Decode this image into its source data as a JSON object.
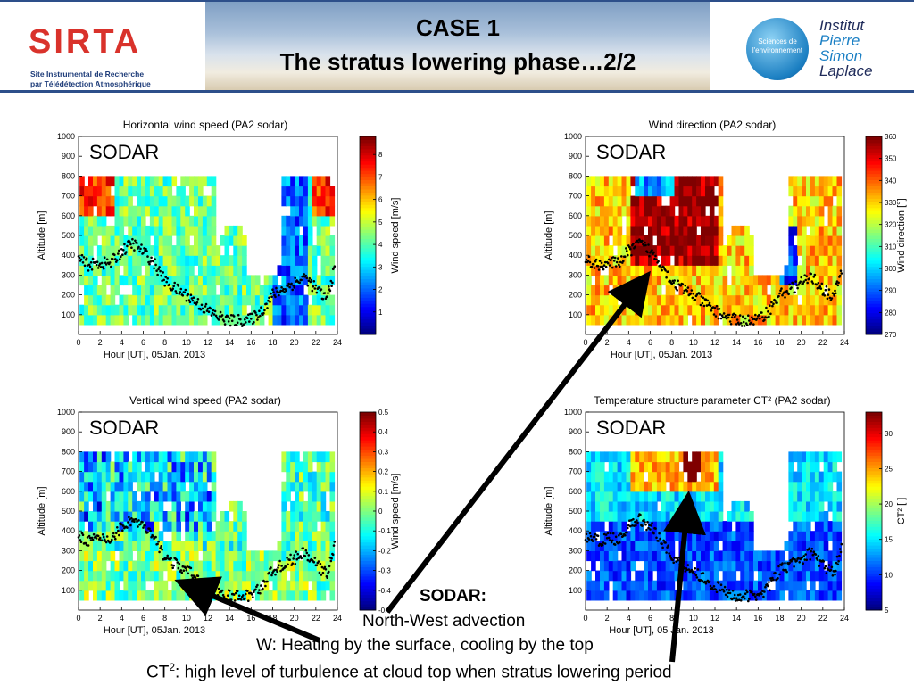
{
  "header": {
    "logo_left": {
      "word": "SIRTA",
      "line1": "Site Instrumental de Recherche",
      "line2": "par Télédétection Atmosphérique"
    },
    "title_line1": "CASE 1",
    "title_line2": "The stratus lowering phase…2/2",
    "logo_right": {
      "circle_line1": "Sciences de",
      "circle_line2": "l'environnement",
      "name1": "Institut",
      "name2": "Pierre",
      "name3": "Simon",
      "name4": "Laplace"
    }
  },
  "panels": [
    {
      "id": "hws",
      "title": "Horizontal wind speed (PA2 sodar)",
      "xlabel": "Hour [UT], 05Jan. 2013",
      "ylabel": "Altitude [m]",
      "tag": "SODAR",
      "cbar_label": "Wind speed [m/s]",
      "cbar_ticks": [
        "1",
        "2",
        "3",
        "4",
        "5",
        "6",
        "7",
        "8"
      ]
    },
    {
      "id": "wd",
      "title": "Wind direction (PA2 sodar)",
      "xlabel": "Hour [UT], 05Jan. 2013",
      "ylabel": "Altitude [m]",
      "tag": "SODAR",
      "cbar_label": "Wind direction [°]",
      "cbar_ticks": [
        "270",
        "280",
        "290",
        "300",
        "310",
        "320",
        "330",
        "340",
        "350",
        "360"
      ]
    },
    {
      "id": "vws",
      "title": "Vertical wind speed (PA2 sodar)",
      "xlabel": "Hour [UT], 05Jan. 2013",
      "ylabel": "Altitude [m]",
      "tag": "SODAR",
      "cbar_label": "Wind speed [m/s]",
      "cbar_ticks": [
        "-0.5",
        "-0.4",
        "-0.3",
        "-0.2",
        "-0.1",
        "0",
        "0.1",
        "0.2",
        "0.3",
        "0.4",
        "0.5"
      ]
    },
    {
      "id": "ct2",
      "title": "Temperature structure parameter CT² (PA2 sodar)",
      "xlabel": "Hour [UT], 05 Jan. 2013",
      "ylabel": "Altitude [m]",
      "tag": "SODAR",
      "cbar_label": "CT² [ ]",
      "cbar_ticks": [
        "5",
        "10",
        "15",
        "20",
        "25",
        "30"
      ]
    }
  ],
  "chart_data": [
    {
      "type": "heatmap",
      "title": "Horizontal wind speed (PA2 sodar)",
      "xlabel": "Hour [UT], 05Jan. 2013",
      "ylabel": "Altitude [m]",
      "x_ticks": [
        0,
        2,
        4,
        6,
        8,
        10,
        12,
        14,
        16,
        18,
        20,
        22,
        24
      ],
      "y_ticks": [
        100,
        200,
        300,
        400,
        500,
        600,
        700,
        800,
        900,
        1000
      ],
      "xlim": [
        0,
        24
      ],
      "ylim": [
        0,
        1000
      ],
      "colorbar": {
        "label": "Wind speed [m/s]",
        "range": [
          0,
          8.8
        ]
      }
    },
    {
      "type": "heatmap",
      "title": "Wind direction (PA2 sodar)",
      "xlabel": "Hour [UT], 05Jan. 2013",
      "ylabel": "Altitude [m]",
      "x_ticks": [
        0,
        2,
        4,
        6,
        8,
        10,
        12,
        14,
        16,
        18,
        20,
        22,
        24
      ],
      "y_ticks": [
        100,
        200,
        300,
        400,
        500,
        600,
        700,
        800,
        900,
        1000
      ],
      "xlim": [
        0,
        24
      ],
      "ylim": [
        0,
        1000
      ],
      "colorbar": {
        "label": "Wind direction [°]",
        "range": [
          270,
          360
        ]
      }
    },
    {
      "type": "heatmap",
      "title": "Vertical wind speed (PA2 sodar)",
      "xlabel": "Hour [UT], 05Jan. 2013",
      "ylabel": "Altitude [m]",
      "x_ticks": [
        0,
        2,
        4,
        6,
        8,
        10,
        12,
        14,
        16,
        18,
        20,
        22,
        24
      ],
      "y_ticks": [
        100,
        200,
        300,
        400,
        500,
        600,
        700,
        800,
        900,
        1000
      ],
      "xlim": [
        0,
        24
      ],
      "ylim": [
        0,
        1000
      ],
      "colorbar": {
        "label": "Wind speed [m/s]",
        "range": [
          -0.5,
          0.5
        ]
      }
    },
    {
      "type": "heatmap",
      "title": "Temperature structure parameter CT² (PA2 sodar)",
      "xlabel": "Hour [UT], 05 Jan. 2013",
      "ylabel": "Altitude [m]",
      "x_ticks": [
        0,
        2,
        4,
        6,
        8,
        10,
        12,
        14,
        16,
        18,
        20,
        22,
        24
      ],
      "y_ticks": [
        100,
        200,
        300,
        400,
        500,
        600,
        700,
        800,
        900,
        1000
      ],
      "xlim": [
        0,
        24
      ],
      "ylim": [
        0,
        1000
      ],
      "colorbar": {
        "label": "CT² [ ]",
        "range": [
          5,
          33
        ]
      }
    }
  ],
  "cloud_top_overlay": {
    "x": [
      0,
      1,
      2,
      3,
      4,
      5,
      6,
      7,
      8,
      9,
      10,
      11,
      12,
      13,
      14,
      15,
      16,
      17,
      18,
      19,
      20,
      21,
      22,
      23,
      23.8
    ],
    "y": [
      380,
      350,
      360,
      360,
      420,
      460,
      420,
      360,
      270,
      230,
      200,
      160,
      120,
      90,
      70,
      70,
      75,
      120,
      200,
      230,
      260,
      290,
      230,
      180,
      340
    ]
  },
  "captions": {
    "sodar_heading": "SODAR:",
    "line1": "North-West advection",
    "line2": "W: Heating by the surface, cooling by the top",
    "line3_prefix": "CT",
    "line3_sup": "2",
    "line3_rest": ": high level of turbulence at cloud top when stratus lowering period"
  }
}
